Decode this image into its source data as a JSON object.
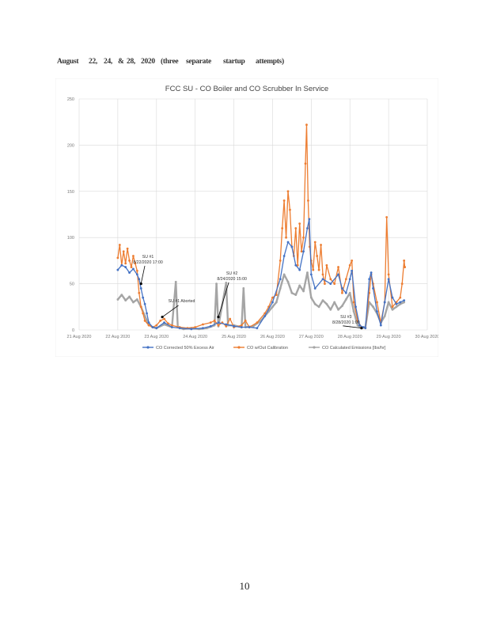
{
  "heading": {
    "words": [
      "August",
      "22,",
      "24,",
      "&",
      "28,",
      "2020",
      "(three",
      "separate",
      "startup",
      "attempts)"
    ]
  },
  "page_number": "10",
  "colors": {
    "series_blue": "#4472c4",
    "series_orange": "#ed7d31",
    "series_gray": "#a5a5a5",
    "grid": "#d9d9d9"
  },
  "chart_data": {
    "type": "line",
    "title": "FCC SU - CO Boiler and CO Scrubber In Service",
    "xlabel": "",
    "ylabel": "",
    "xlim": [
      0,
      9
    ],
    "ylim": [
      0,
      250
    ],
    "grid": true,
    "legend_position": "bottom",
    "x_tick_labels": [
      "21 Aug 2020",
      "22 Aug 2020",
      "23 Aug 2020",
      "24 Aug 2020",
      "25 Aug 2020",
      "26 Aug 2020",
      "27 Aug 2020",
      "28 Aug 2020",
      "29 Aug 2020",
      "30 Aug 2020"
    ],
    "y_tick_labels": [
      "0",
      "50",
      "100",
      "150",
      "200",
      "250"
    ],
    "series": [
      {
        "name": "CO Corrected 50% Excess Air",
        "color": "#4472c4",
        "points": [
          [
            1.0,
            65
          ],
          [
            1.1,
            70
          ],
          [
            1.2,
            68
          ],
          [
            1.3,
            62
          ],
          [
            1.4,
            66
          ],
          [
            1.5,
            60
          ],
          [
            1.55,
            55
          ],
          [
            1.6,
            45
          ],
          [
            1.65,
            35
          ],
          [
            1.7,
            28
          ],
          [
            1.75,
            18
          ],
          [
            1.8,
            8
          ],
          [
            1.9,
            3
          ],
          [
            2.0,
            2
          ],
          [
            2.2,
            8
          ],
          [
            2.4,
            3
          ],
          [
            2.6,
            2
          ],
          [
            2.9,
            1
          ],
          [
            3.2,
            2
          ],
          [
            3.4,
            4
          ],
          [
            3.6,
            8
          ],
          [
            3.8,
            6
          ],
          [
            4.0,
            4
          ],
          [
            4.2,
            3
          ],
          [
            4.4,
            3
          ],
          [
            4.6,
            2
          ],
          [
            4.8,
            15
          ],
          [
            5.0,
            30
          ],
          [
            5.2,
            55
          ],
          [
            5.3,
            80
          ],
          [
            5.4,
            95
          ],
          [
            5.5,
            90
          ],
          [
            5.6,
            70
          ],
          [
            5.7,
            65
          ],
          [
            5.8,
            85
          ],
          [
            5.9,
            110
          ],
          [
            5.95,
            120
          ],
          [
            6.0,
            60
          ],
          [
            6.1,
            45
          ],
          [
            6.3,
            55
          ],
          [
            6.5,
            50
          ],
          [
            6.7,
            60
          ],
          [
            6.8,
            45
          ],
          [
            6.9,
            40
          ],
          [
            7.0,
            55
          ],
          [
            7.05,
            64
          ],
          [
            7.15,
            25
          ],
          [
            7.25,
            5
          ],
          [
            7.35,
            3
          ],
          [
            7.4,
            2
          ],
          [
            7.5,
            55
          ],
          [
            7.55,
            62
          ],
          [
            7.6,
            45
          ],
          [
            7.7,
            20
          ],
          [
            7.8,
            5
          ],
          [
            7.9,
            30
          ],
          [
            8.0,
            55
          ],
          [
            8.1,
            35
          ],
          [
            8.2,
            28
          ],
          [
            8.3,
            30
          ],
          [
            8.4,
            32
          ]
        ]
      },
      {
        "name": "CO w/Out Calibration",
        "color": "#ed7d31",
        "points": [
          [
            1.0,
            78
          ],
          [
            1.05,
            92
          ],
          [
            1.1,
            70
          ],
          [
            1.15,
            85
          ],
          [
            1.2,
            72
          ],
          [
            1.25,
            88
          ],
          [
            1.3,
            75
          ],
          [
            1.35,
            68
          ],
          [
            1.4,
            80
          ],
          [
            1.45,
            72
          ],
          [
            1.5,
            64
          ],
          [
            1.55,
            40
          ],
          [
            1.6,
            25
          ],
          [
            1.65,
            18
          ],
          [
            1.7,
            10
          ],
          [
            1.8,
            5
          ],
          [
            1.9,
            3
          ],
          [
            2.0,
            5
          ],
          [
            2.1,
            10
          ],
          [
            2.2,
            12
          ],
          [
            2.3,
            7
          ],
          [
            2.4,
            5
          ],
          [
            2.6,
            3
          ],
          [
            2.8,
            2
          ],
          [
            3.0,
            3
          ],
          [
            3.2,
            6
          ],
          [
            3.4,
            8
          ],
          [
            3.5,
            10
          ],
          [
            3.6,
            5
          ],
          [
            3.7,
            8
          ],
          [
            3.8,
            4
          ],
          [
            3.9,
            12
          ],
          [
            4.0,
            3
          ],
          [
            4.2,
            5
          ],
          [
            4.3,
            10
          ],
          [
            4.4,
            3
          ],
          [
            4.6,
            8
          ],
          [
            4.8,
            18
          ],
          [
            4.9,
            25
          ],
          [
            5.0,
            35
          ],
          [
            5.1,
            38
          ],
          [
            5.2,
            75
          ],
          [
            5.25,
            110
          ],
          [
            5.3,
            140
          ],
          [
            5.35,
            100
          ],
          [
            5.4,
            150
          ],
          [
            5.45,
            130
          ],
          [
            5.5,
            90
          ],
          [
            5.55,
            80
          ],
          [
            5.6,
            110
          ],
          [
            5.65,
            70
          ],
          [
            5.7,
            115
          ],
          [
            5.75,
            85
          ],
          [
            5.8,
            100
          ],
          [
            5.85,
            180
          ],
          [
            5.88,
            222
          ],
          [
            5.92,
            140
          ],
          [
            5.96,
            90
          ],
          [
            6.0,
            75
          ],
          [
            6.05,
            65
          ],
          [
            6.1,
            95
          ],
          [
            6.15,
            80
          ],
          [
            6.2,
            65
          ],
          [
            6.25,
            92
          ],
          [
            6.3,
            60
          ],
          [
            6.35,
            50
          ],
          [
            6.4,
            70
          ],
          [
            6.5,
            55
          ],
          [
            6.6,
            50
          ],
          [
            6.7,
            68
          ],
          [
            6.8,
            40
          ],
          [
            6.9,
            55
          ],
          [
            7.0,
            70
          ],
          [
            7.05,
            75
          ],
          [
            7.1,
            30
          ],
          [
            7.2,
            10
          ],
          [
            7.3,
            3
          ],
          [
            7.4,
            2
          ],
          [
            7.5,
            40
          ],
          [
            7.55,
            60
          ],
          [
            7.6,
            50
          ],
          [
            7.7,
            30
          ],
          [
            7.8,
            8
          ],
          [
            7.9,
            30
          ],
          [
            7.95,
            122
          ],
          [
            8.0,
            60
          ],
          [
            8.1,
            25
          ],
          [
            8.2,
            30
          ],
          [
            8.3,
            35
          ],
          [
            8.35,
            50
          ],
          [
            8.4,
            75
          ],
          [
            8.42,
            68
          ]
        ]
      },
      {
        "name": "CO Calculated Emissions [lbs/hr]",
        "color": "#a5a5a5",
        "points": [
          [
            1.0,
            33
          ],
          [
            1.1,
            38
          ],
          [
            1.2,
            32
          ],
          [
            1.3,
            36
          ],
          [
            1.4,
            30
          ],
          [
            1.5,
            33
          ],
          [
            1.6,
            25
          ],
          [
            1.7,
            15
          ],
          [
            1.8,
            6
          ],
          [
            1.9,
            3
          ],
          [
            2.0,
            2
          ],
          [
            2.2,
            6
          ],
          [
            2.4,
            3
          ],
          [
            2.5,
            52
          ],
          [
            2.55,
            3
          ],
          [
            2.7,
            1
          ],
          [
            2.9,
            2
          ],
          [
            3.1,
            1
          ],
          [
            3.3,
            2
          ],
          [
            3.5,
            5
          ],
          [
            3.55,
            50
          ],
          [
            3.6,
            4
          ],
          [
            3.8,
            51
          ],
          [
            3.85,
            5
          ],
          [
            4.0,
            5
          ],
          [
            4.2,
            3
          ],
          [
            4.25,
            45
          ],
          [
            4.3,
            3
          ],
          [
            4.5,
            4
          ],
          [
            4.7,
            10
          ],
          [
            4.9,
            20
          ],
          [
            5.0,
            25
          ],
          [
            5.1,
            30
          ],
          [
            5.2,
            45
          ],
          [
            5.3,
            60
          ],
          [
            5.4,
            52
          ],
          [
            5.5,
            40
          ],
          [
            5.6,
            38
          ],
          [
            5.7,
            48
          ],
          [
            5.8,
            42
          ],
          [
            5.9,
            62
          ],
          [
            6.0,
            35
          ],
          [
            6.1,
            28
          ],
          [
            6.2,
            25
          ],
          [
            6.3,
            32
          ],
          [
            6.4,
            28
          ],
          [
            6.5,
            22
          ],
          [
            6.6,
            30
          ],
          [
            6.7,
            22
          ],
          [
            6.8,
            26
          ],
          [
            6.9,
            33
          ],
          [
            7.0,
            40
          ],
          [
            7.1,
            20
          ],
          [
            7.2,
            5
          ],
          [
            7.3,
            2
          ],
          [
            7.4,
            3
          ],
          [
            7.5,
            30
          ],
          [
            7.6,
            25
          ],
          [
            7.7,
            18
          ],
          [
            7.8,
            8
          ],
          [
            7.9,
            15
          ],
          [
            8.0,
            30
          ],
          [
            8.1,
            22
          ],
          [
            8.2,
            25
          ],
          [
            8.3,
            28
          ],
          [
            8.4,
            30
          ]
        ]
      }
    ],
    "annotations": [
      {
        "text": "SU #1",
        "subtext": "8/22/2020 17:00",
        "x": 1.6,
        "y": 50
      },
      {
        "text": "SU #1 Aborted",
        "x": 2.15,
        "y": 14
      },
      {
        "text": "SU #2",
        "subtext": "8/24/2020 15:00",
        "x": 3.6,
        "y": 14
      },
      {
        "text": "SU #3",
        "subtext": "8/28/2020 1:00",
        "x": 7.3,
        "y": 2
      }
    ]
  }
}
